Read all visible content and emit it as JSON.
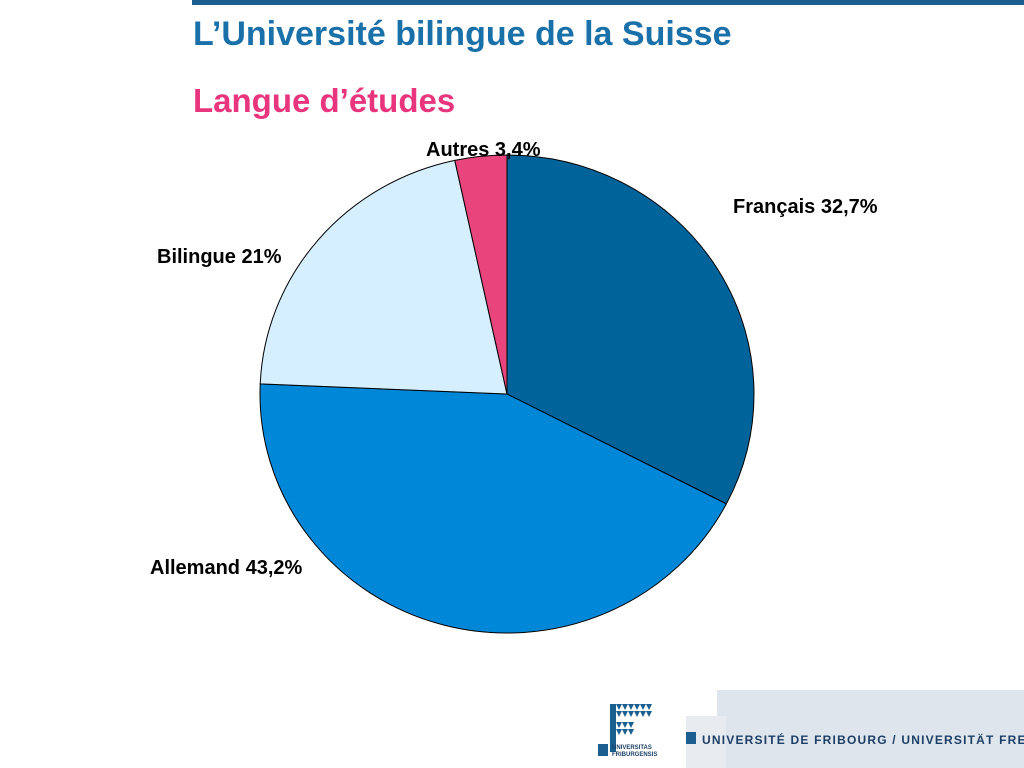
{
  "header": {
    "title": "L’Université bilingue de la Suisse",
    "subtitle": "Langue d’études"
  },
  "chart_data": {
    "type": "pie",
    "title": "Langue d’études",
    "slices": [
      {
        "name": "Français",
        "value": 32.7,
        "label": "Français 32,7%",
        "color": "#00649b"
      },
      {
        "name": "Allemand",
        "value": 43.2,
        "label": "Allemand 43,2%",
        "color": "#0087d7"
      },
      {
        "name": "Bilingue",
        "value": 21,
        "label": "Bilingue 21%",
        "color": "#d6efff"
      },
      {
        "name": "Autres",
        "value": 3.4,
        "label": "Autres 3,4%",
        "color": "#e8457d"
      }
    ],
    "start": "top",
    "direction": "clockwise"
  },
  "footer": {
    "university": "UNIVERSITÉ DE FRIBOURG / UNIVERSITÄT FREIBURG",
    "logo_text_1": "UNIVERSITAS",
    "logo_text_2": "FRIBURGENSIS"
  },
  "colors": {
    "title": "#1a70a8",
    "subtitle": "#e8357d",
    "rule": "#1a5f8f"
  }
}
